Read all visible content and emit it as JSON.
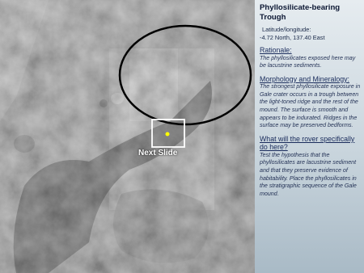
{
  "slide": {
    "image_label": "Next Slide",
    "panel": {
      "title": "Phyllosilicate-bearing Trough",
      "location_label": "Latitude/longitude:",
      "location_value": "-4.72 North, 137.40 East",
      "sections": [
        {
          "heading": "Rationale:",
          "body": "The phyllosilicates exposed here may be lacustrine sediments."
        },
        {
          "heading": "Morphology and Mineralogy:",
          "body": "The strongest phyllosilicate exposure in Gale crater occurs in a trough between the light-toned ridge and the rest of the mound. The surface is smooth and appears to be indurated. Ridges in the surface may be preserved bedforms."
        },
        {
          "heading": "What will the rover specifically do here?",
          "body": "Test the hypothesis that the phyllosilicates are lacustrine sediment and that they preserve evidence of habitability. Place the phyllosilicates in the stratigraphic sequence of the Gale mound."
        }
      ]
    }
  }
}
